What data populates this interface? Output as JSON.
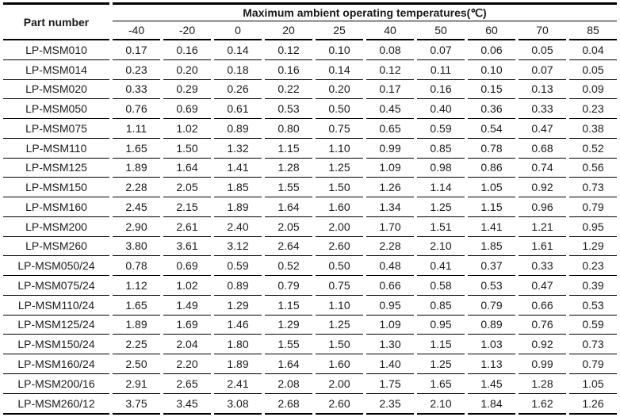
{
  "table": {
    "part_number_label": "Part number",
    "title": "Maximum ambient operating temperatures(℃)",
    "temp_columns": [
      "-40",
      "-20",
      "0",
      "20",
      "25",
      "40",
      "50",
      "60",
      "70",
      "85"
    ],
    "rows": [
      {
        "part": "LP-MSM010",
        "values": [
          "0.17",
          "0.16",
          "0.14",
          "0.12",
          "0.10",
          "0.08",
          "0.07",
          "0.06",
          "0.05",
          "0.04"
        ]
      },
      {
        "part": "LP-MSM014",
        "values": [
          "0.23",
          "0.20",
          "0.18",
          "0.16",
          "0.14",
          "0.12",
          "0.11",
          "0.10",
          "0.07",
          "0.05"
        ]
      },
      {
        "part": "LP-MSM020",
        "values": [
          "0.33",
          "0.29",
          "0.26",
          "0.22",
          "0.20",
          "0.17",
          "0.16",
          "0.15",
          "0.13",
          "0.09"
        ]
      },
      {
        "part": "LP-MSM050",
        "values": [
          "0.76",
          "0.69",
          "0.61",
          "0.53",
          "0.50",
          "0.45",
          "0.40",
          "0.36",
          "0.33",
          "0.23"
        ]
      },
      {
        "part": "LP-MSM075",
        "values": [
          "1.11",
          "1.02",
          "0.89",
          "0.80",
          "0.75",
          "0.65",
          "0.59",
          "0.54",
          "0.47",
          "0.38"
        ]
      },
      {
        "part": "LP-MSM110",
        "values": [
          "1.65",
          "1.50",
          "1.32",
          "1.15",
          "1.10",
          "0.99",
          "0.85",
          "0.78",
          "0.68",
          "0.52"
        ]
      },
      {
        "part": "LP-MSM125",
        "values": [
          "1.89",
          "1.64",
          "1.41",
          "1.28",
          "1.25",
          "1.09",
          "0.98",
          "0.86",
          "0.74",
          "0.56"
        ]
      },
      {
        "part": "LP-MSM150",
        "values": [
          "2.28",
          "2.05",
          "1.85",
          "1.55",
          "1.50",
          "1.26",
          "1.14",
          "1.05",
          "0.92",
          "0.73"
        ]
      },
      {
        "part": "LP-MSM160",
        "values": [
          "2.45",
          "2.15",
          "1.89",
          "1.64",
          "1.60",
          "1.34",
          "1.25",
          "1.15",
          "0.96",
          "0.79"
        ]
      },
      {
        "part": "LP-MSM200",
        "values": [
          "2.90",
          "2.61",
          "2.40",
          "2.05",
          "2.00",
          "1.70",
          "1.51",
          "1.41",
          "1.21",
          "0.95"
        ]
      },
      {
        "part": "LP-MSM260",
        "values": [
          "3.80",
          "3.61",
          "3.12",
          "2.64",
          "2.60",
          "2.28",
          "2.10",
          "1.85",
          "1.61",
          "1.29"
        ]
      },
      {
        "part": "LP-MSM050/24",
        "values": [
          "0.78",
          "0.69",
          "0.59",
          "0.52",
          "0.50",
          "0.48",
          "0.41",
          "0.37",
          "0.33",
          "0.23"
        ]
      },
      {
        "part": "LP-MSM075/24",
        "values": [
          "1.12",
          "1.02",
          "0.89",
          "0.79",
          "0.75",
          "0.66",
          "0.58",
          "0.53",
          "0.47",
          "0.39"
        ]
      },
      {
        "part": "LP-MSM110/24",
        "values": [
          "1.65",
          "1.49",
          "1.29",
          "1.15",
          "1.10",
          "0.95",
          "0.85",
          "0.79",
          "0.66",
          "0.53"
        ]
      },
      {
        "part": "LP-MSM125/24",
        "values": [
          "1.89",
          "1.69",
          "1.46",
          "1.29",
          "1.25",
          "1.09",
          "0.95",
          "0.89",
          "0.76",
          "0.59"
        ]
      },
      {
        "part": "LP-MSM150/24",
        "values": [
          "2.25",
          "2.04",
          "1.80",
          "1.55",
          "1.50",
          "1.30",
          "1.15",
          "1.03",
          "0.92",
          "0.73"
        ]
      },
      {
        "part": "LP-MSM160/24",
        "values": [
          "2.50",
          "2.20",
          "1.89",
          "1.64",
          "1.60",
          "1.40",
          "1.25",
          "1.13",
          "0.99",
          "0.79"
        ]
      },
      {
        "part": "LP-MSM200/16",
        "values": [
          "2.91",
          "2.65",
          "2.41",
          "2.08",
          "2.00",
          "1.75",
          "1.65",
          "1.45",
          "1.28",
          "1.05"
        ]
      },
      {
        "part": "LP-MSM260/12",
        "values": [
          "3.75",
          "3.45",
          "3.08",
          "2.68",
          "2.60",
          "2.35",
          "2.10",
          "1.84",
          "1.62",
          "1.26"
        ]
      }
    ]
  }
}
